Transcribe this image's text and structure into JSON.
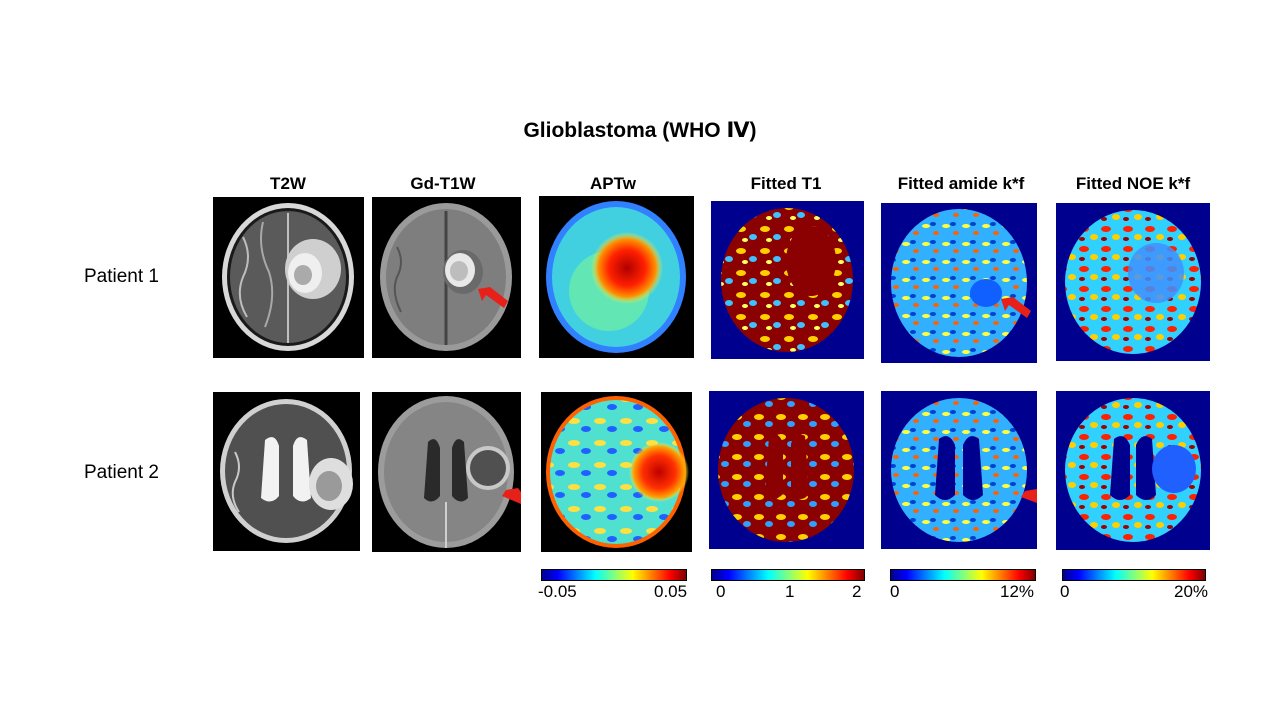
{
  "title": "Glioblastoma (WHO Ⅳ)",
  "columns": [
    "T2W",
    "Gd-T1W",
    "APTw",
    "Fitted T1",
    "Fitted amide k*f",
    "Fitted NOE k*f"
  ],
  "rows": [
    "Patient 1",
    "Patient 2"
  ],
  "colorbars": [
    {
      "min": "-0.05",
      "max": "0.05"
    },
    {
      "ticks": [
        "0",
        "1",
        "2"
      ]
    },
    {
      "min": "0",
      "max": "12%"
    },
    {
      "min": "0",
      "max": "20%"
    }
  ],
  "colors": {
    "arrow": "#e8201a",
    "map_background": "#00008f"
  }
}
